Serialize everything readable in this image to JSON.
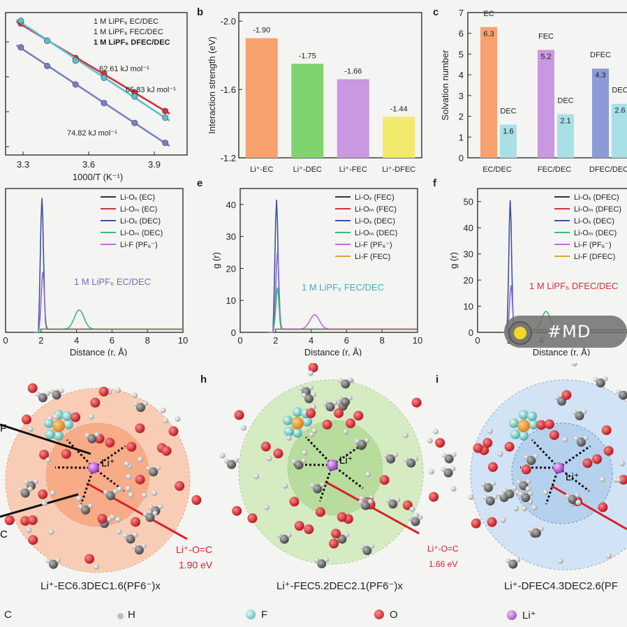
{
  "panels": {
    "a": {
      "letter": "",
      "legend": [
        "1 M LiPF₆ EC/DEC",
        "1 M LiPF₆ FEC/DEC",
        "1 M LiPF₆ DFEC/DEC"
      ],
      "legend_colors": [
        "#7a7fc4",
        "#5bbfd0",
        "#d2303c"
      ],
      "energy_labels": [
        "62.61 kJ mol⁻¹",
        "65.83 kJ mol⁻¹",
        "74.82 kJ mol⁻¹"
      ]
    },
    "b": {
      "letter": "b"
    },
    "c": {
      "letter": "c"
    },
    "d": {
      "letter": "",
      "annotation": "1 M LiPF₆ EC/DEC"
    },
    "e": {
      "letter": "e",
      "annotation": "1 M LiPF₆ FEC/DEC"
    },
    "f": {
      "letter": "f",
      "annotation": "1 M LiPF₆ DFEC/DEC"
    },
    "g": {
      "letter": ""
    },
    "h": {
      "letter": "h"
    },
    "i": {
      "letter": "i"
    }
  },
  "chart_data": [
    {
      "id": "a",
      "type": "line",
      "xlabel": "1000/T (K⁻¹)",
      "ylabel": "",
      "xticks": [
        "3.3",
        "3.6",
        "3.9"
      ],
      "xlim": [
        3.22,
        4.05
      ],
      "series": [
        {
          "name": "1 M LiPF₆ DFEC/DEC",
          "color": "#d2303c",
          "x": [
            3.29,
            3.41,
            3.54,
            3.67,
            3.81,
            3.95
          ],
          "y": [
            0.96,
            0.83,
            0.7,
            0.58,
            0.44,
            0.3
          ]
        },
        {
          "name": "1 M LiPF₆ FEC/DEC",
          "color": "#5bbfd0",
          "x": [
            3.29,
            3.41,
            3.54,
            3.67,
            3.81,
            3.95
          ],
          "y": [
            0.98,
            0.83,
            0.68,
            0.55,
            0.41,
            0.25
          ]
        },
        {
          "name": "1 M LiPF₆ EC/DEC",
          "color": "#7a7fc4",
          "x": [
            3.29,
            3.41,
            3.54,
            3.67,
            3.81,
            3.95
          ],
          "y": [
            0.78,
            0.64,
            0.5,
            0.36,
            0.21,
            0.06
          ]
        }
      ]
    },
    {
      "id": "b",
      "type": "bar",
      "ylabel": "Interaction strength (eV)",
      "categories": [
        "Li⁺-EC",
        "Li⁺-DEC",
        "Li⁺-FEC",
        "Li⁺-DFEC"
      ],
      "values": [
        -1.9,
        -1.75,
        -1.66,
        -1.44
      ],
      "value_labels": [
        "-1.90",
        "-1.75",
        "-1.66",
        "-1.44"
      ],
      "colors": [
        "#f7a26c",
        "#7fd36f",
        "#c998e0",
        "#f2ea6a"
      ],
      "yticks": [
        "-2.0",
        "-1.6",
        "-1.2"
      ],
      "ylim": [
        -1.2,
        -2.0
      ]
    },
    {
      "id": "c",
      "type": "bar",
      "ylabel": "Solvation number",
      "categories": [
        "EC/DEC",
        "FEC/DEC",
        "DFEC/DEC"
      ],
      "series": [
        {
          "names": [
            "EC",
            "FEC",
            "DFEC"
          ],
          "values": [
            6.3,
            5.2,
            4.3
          ],
          "colors": [
            "#f7a26c",
            "#c998e0",
            "#8c9ad8"
          ]
        },
        {
          "names": [
            "DEC",
            "DEC",
            "DEC"
          ],
          "values": [
            1.6,
            2.1,
            2.6
          ],
          "colors": [
            "#a8e0e6",
            "#a8e0e6",
            "#a8e0e6"
          ]
        }
      ],
      "value_labels": [
        [
          "6.3",
          "5.2",
          "4.3"
        ],
        [
          "1.6",
          "2.1",
          "2.6"
        ]
      ],
      "yticks": [
        "0",
        "1",
        "2",
        "3",
        "4",
        "5",
        "6",
        "7"
      ],
      "ylim": [
        0,
        7
      ]
    },
    {
      "id": "d",
      "type": "line",
      "xlabel": "Distance (r, Å)",
      "ylabel": "",
      "xticks": [
        "0",
        "2",
        "4",
        "6",
        "8",
        "10"
      ],
      "xlim": [
        0,
        10
      ],
      "legend": [
        "Li-Oₓ (EC)",
        "Li-Oₘ (EC)",
        "Li-Oₓ (DEC)",
        "Li-Oₘ (DEC)",
        "Li-F (PF₆⁻)"
      ],
      "colors": [
        "#333333",
        "#d2303c",
        "#3f4fa6",
        "#3cb884",
        "#c36ad8"
      ],
      "peaks": [
        {
          "r": 2.05,
          "height": 41
        },
        {
          "r": 2.1,
          "height": 18
        },
        {
          "r": 4.15,
          "height": 6
        }
      ]
    },
    {
      "id": "e",
      "type": "line",
      "xlabel": "Distance (r, Å)",
      "ylabel": "g (r)",
      "xticks": [
        "0",
        "2",
        "4",
        "6",
        "8",
        "10"
      ],
      "yticks": [
        "0",
        "10",
        "20",
        "30",
        "40"
      ],
      "xlim": [
        0,
        10
      ],
      "ylim": [
        0,
        45
      ],
      "legend": [
        "Li-Oₓ (FEC)",
        "Li-Oₘ (FEC)",
        "Li-Oₓ (DEC)",
        "Li-Oₘ (DEC)",
        "Li-F (PF₆⁻)",
        "Li-F (FEC)"
      ],
      "colors": [
        "#333333",
        "#d2303c",
        "#3f4fa6",
        "#3cb884",
        "#c36ad8",
        "#d4a830"
      ],
      "peaks": [
        {
          "r": 2.05,
          "height": 40.5
        },
        {
          "r": 2.1,
          "height": 24
        },
        {
          "r": 2.1,
          "height": 13
        },
        {
          "r": 4.2,
          "height": 4.5
        }
      ]
    },
    {
      "id": "f",
      "type": "line",
      "xlabel": "Distance (r, Å)",
      "ylabel": "g (r)",
      "xticks": [
        "0",
        "2",
        "4"
      ],
      "yticks": [
        "0",
        "10",
        "20",
        "30",
        "40",
        "50"
      ],
      "xlim": [
        0,
        10
      ],
      "ylim": [
        0,
        55
      ],
      "legend": [
        "Li-Oₓ (DFEC)",
        "Li-Oₘ (DFEC)",
        "Li-Oₓ (DEC)",
        "Li-Oₘ (DEC)",
        "Li-F (PF₆⁻)",
        "Li-F (DFEC)"
      ],
      "colors": [
        "#333333",
        "#d2303c",
        "#3f4fa6",
        "#3cb884",
        "#c36ad8",
        "#d4a830"
      ],
      "peaks": [
        {
          "r": 2.05,
          "height": 49.5
        },
        {
          "r": 2.1,
          "height": 17
        },
        {
          "r": 4.3,
          "height": 7
        }
      ]
    }
  ],
  "solvation": {
    "g": {
      "formula": "Li⁺-EC6.3DEC1.6(PF6⁻)x",
      "bond": "Li⁺-O=C",
      "energy": "1.90 eV"
    },
    "h": {
      "formula": "Li⁺-FEC5.2DEC2.1(PF6⁻)x",
      "bond": "Li⁺-O=C",
      "energy": "1.66 eV"
    },
    "i": {
      "formula": "Li⁺-DFEC4.3DEC2.6(PF",
      "bond": "",
      "energy": ""
    },
    "li_label": "Li⁺",
    "edge_labels": [
      "F",
      "C"
    ]
  },
  "atom_legend": [
    {
      "label": "C",
      "color": "#666666"
    },
    {
      "label": "H",
      "color": "#dddddd"
    },
    {
      "label": "F",
      "color": "#6fd0c8"
    },
    {
      "label": "O",
      "color": "#d8202c"
    },
    {
      "label": "Li⁺",
      "color": "#b04fd0"
    }
  ],
  "watermark": "#MD"
}
